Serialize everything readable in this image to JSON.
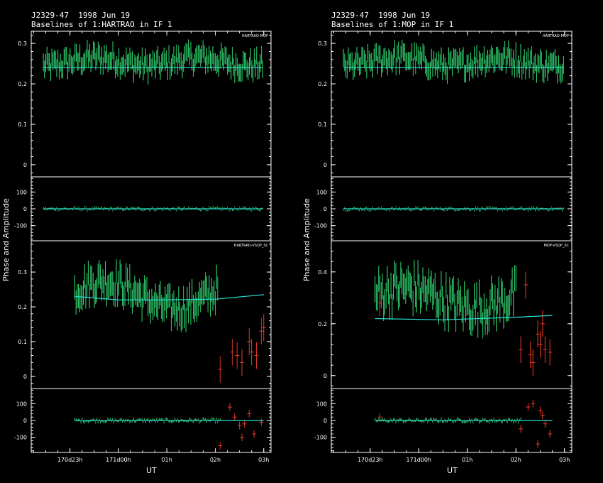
{
  "chart_data": [
    {
      "type": "scatter",
      "title": "J2329-47  1998 Jun 19",
      "subtitle": "Baselines of 1:HARTRAO in IF 1",
      "ylabel": "Phase and Amplitude",
      "xlabel": "UT",
      "x_ticks": [
        "170d23h",
        "171d00h",
        "01h",
        "02h",
        "03h"
      ],
      "x_tick_values": [
        23,
        24,
        25,
        26,
        27
      ],
      "xlim": [
        22.2,
        27.15
      ],
      "panels": [
        {
          "baseline": "HARTRAO-MOP",
          "amp": {
            "ylim": [
              -0.03,
              0.33
            ],
            "yticks": [
              0,
              0.1,
              0.2,
              0.3
            ],
            "yticklabels": [
              "0",
              "0.1",
              "0.2",
              "0.3"
            ],
            "t_range": [
              22.45,
              26.98
            ],
            "good_mean": 0.255,
            "good_spread": 0.025,
            "errbar": 0.022,
            "model": [
              [
                22.45,
                0.24
              ],
              [
                26.98,
                0.24
              ]
            ],
            "bad": []
          },
          "phase": {
            "ylim": [
              -190,
              190
            ],
            "yticks": [
              -100,
              0,
              100
            ],
            "yticklabels": [
              "-100",
              "0",
              "100"
            ],
            "t_range": [
              22.45,
              26.98
            ],
            "good_spread": 4,
            "errbar": 4,
            "model": [
              [
                22.45,
                0
              ],
              [
                26.98,
                0
              ]
            ],
            "bad": []
          }
        },
        {
          "baseline": "HARTRAO-VSOP_SC",
          "amp": {
            "ylim": [
              -0.035,
              0.39
            ],
            "yticks": [
              0,
              0.1,
              0.2,
              0.3
            ],
            "yticklabels": [
              "0",
              "0.1",
              "0.2",
              "0.3"
            ],
            "t_range": [
              23.1,
              26.05
            ],
            "good_mean": 0.235,
            "good_spread": 0.04,
            "errbar": 0.035,
            "model": [
              [
                23.1,
                0.23
              ],
              [
                24.0,
                0.22
              ],
              [
                25.0,
                0.22
              ],
              [
                26.0,
                0.222
              ],
              [
                27.0,
                0.235
              ]
            ],
            "bad": [
              [
                26.1,
                0.02
              ],
              [
                26.35,
                0.07
              ],
              [
                26.45,
                0.06
              ],
              [
                26.55,
                0.04
              ],
              [
                26.7,
                0.1
              ],
              [
                26.75,
                0.07
              ],
              [
                26.85,
                0.06
              ],
              [
                26.95,
                0.13
              ],
              [
                27.0,
                0.14
              ]
            ]
          },
          "phase": {
            "ylim": [
              -190,
              190
            ],
            "yticks": [
              -100,
              0,
              100
            ],
            "yticklabels": [
              "-100",
              "0",
              "100"
            ],
            "t_range": [
              23.1,
              26.1
            ],
            "good_spread": 4,
            "errbar": 6,
            "model": [
              [
                23.1,
                0
              ],
              [
                27.0,
                0
              ]
            ],
            "bad": [
              [
                26.1,
                -150
              ],
              [
                26.3,
                80
              ],
              [
                26.4,
                20
              ],
              [
                26.5,
                -30
              ],
              [
                26.55,
                -100
              ],
              [
                26.6,
                -20
              ],
              [
                26.7,
                40
              ],
              [
                26.8,
                -80
              ],
              [
                26.95,
                -10
              ]
            ]
          }
        }
      ]
    },
    {
      "type": "scatter",
      "title": "J2329-47  1998 Jun 19",
      "subtitle": "Baselines of 1:MOP in IF 1",
      "ylabel": "Phase and Amplitude",
      "xlabel": "UT",
      "x_ticks": [
        "170d23h",
        "171d00h",
        "01h",
        "02h",
        "03h"
      ],
      "x_tick_values": [
        23,
        24,
        25,
        26,
        27
      ],
      "xlim": [
        22.2,
        27.15
      ],
      "panels": [
        {
          "baseline": "HARTRAO-MOP",
          "amp": {
            "ylim": [
              -0.03,
              0.33
            ],
            "yticks": [
              0,
              0.1,
              0.2,
              0.3
            ],
            "yticklabels": [
              "0",
              "0.1",
              "0.2",
              "0.3"
            ],
            "t_range": [
              22.45,
              26.98
            ],
            "good_mean": 0.255,
            "good_spread": 0.025,
            "errbar": 0.022,
            "model": [
              [
                22.45,
                0.24
              ],
              [
                26.98,
                0.24
              ]
            ],
            "bad": []
          },
          "phase": {
            "ylim": [
              -190,
              190
            ],
            "yticks": [
              -100,
              0,
              100
            ],
            "yticklabels": [
              "-100",
              "0",
              "100"
            ],
            "t_range": [
              22.45,
              26.98
            ],
            "good_spread": 4,
            "errbar": 4,
            "model": [
              [
                22.45,
                0
              ],
              [
                26.98,
                0
              ]
            ],
            "bad": []
          }
        },
        {
          "baseline": "MOP-VSOP_SC",
          "amp": {
            "ylim": [
              -0.05,
              0.52
            ],
            "yticks": [
              0,
              0.2,
              0.4
            ],
            "yticklabels": [
              "0",
              "0.2",
              "0.4"
            ],
            "t_range": [
              23.1,
              26.0
            ],
            "good_mean": 0.3,
            "good_spread": 0.07,
            "errbar": 0.05,
            "model": [
              [
                23.1,
                0.22
              ],
              [
                24.5,
                0.215
              ],
              [
                26.0,
                0.225
              ],
              [
                26.75,
                0.232
              ]
            ],
            "bad": [
              [
                23.2,
                0.28
              ],
              [
                26.1,
                0.1
              ],
              [
                26.2,
                0.35
              ],
              [
                26.3,
                0.08
              ],
              [
                26.35,
                0.05
              ],
              [
                26.45,
                0.16
              ],
              [
                26.5,
                0.12
              ],
              [
                26.55,
                0.2
              ],
              [
                26.6,
                0.1
              ],
              [
                26.7,
                0.09
              ]
            ]
          },
          "phase": {
            "ylim": [
              -190,
              190
            ],
            "yticks": [
              -100,
              0,
              100
            ],
            "yticklabels": [
              "-100",
              "0",
              "100"
            ],
            "t_range": [
              23.1,
              26.1
            ],
            "good_spread": 4,
            "errbar": 6,
            "model": [
              [
                23.1,
                0
              ],
              [
                26.75,
                0
              ]
            ],
            "bad": [
              [
                23.2,
                20
              ],
              [
                26.1,
                -50
              ],
              [
                26.25,
                80
              ],
              [
                26.35,
                100
              ],
              [
                26.45,
                -140
              ],
              [
                26.5,
                60
              ],
              [
                26.55,
                30
              ],
              [
                26.6,
                -20
              ],
              [
                26.7,
                -80
              ]
            ]
          }
        }
      ]
    }
  ],
  "colors": {
    "good": "#33e077",
    "bad": "#e63b22",
    "model": "#29e0d0",
    "axes": "#ffffff",
    "background": "#000000"
  }
}
